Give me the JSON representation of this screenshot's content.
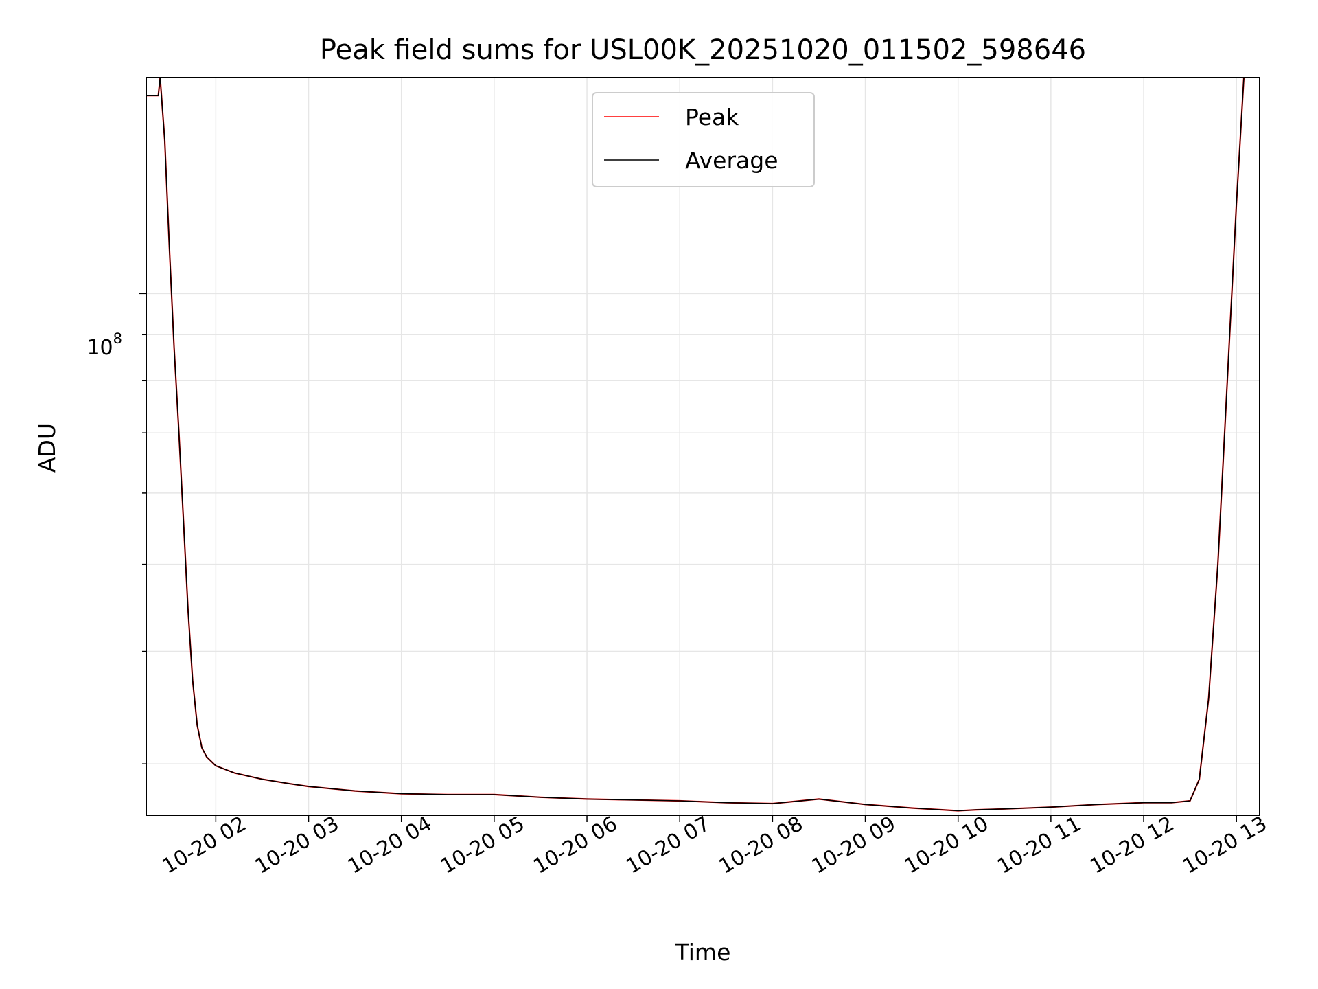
{
  "chart_data": {
    "type": "line",
    "title": "Peak field sums for USL00K_20251020_011502_598646",
    "xlabel": "Time",
    "ylabel": "ADU",
    "yscale": "log",
    "xlim": [
      1.25,
      13.25
    ],
    "ylim_log10": [
      7.42,
      8.24
    ],
    "x_ticks": [
      2,
      3,
      4,
      5,
      6,
      7,
      8,
      9,
      10,
      11,
      12,
      13
    ],
    "x_tick_labels": [
      "10-20 02",
      "10-20 03",
      "10-20 04",
      "10-20 05",
      "10-20 06",
      "10-20 07",
      "10-20 08",
      "10-20 09",
      "10-20 10",
      "10-20 11",
      "10-20 12",
      "10-20 13"
    ],
    "y_major_tick_label": "10",
    "y_major_tick_exponent": "8",
    "y_major_tick_value": 100000000,
    "grid": true,
    "legend_position": "top-center",
    "series": [
      {
        "name": "Peak",
        "color": "#ff0000",
        "x": [
          1.25,
          1.38,
          1.4,
          1.45,
          1.5,
          1.55,
          1.6,
          1.65,
          1.7,
          1.75,
          1.8,
          1.85,
          1.9,
          2.0,
          2.2,
          2.5,
          2.8,
          3.0,
          3.5,
          4.0,
          4.5,
          5.0,
          5.5,
          6.0,
          6.5,
          7.0,
          7.5,
          8.0,
          8.5,
          9.0,
          9.5,
          10.0,
          10.2,
          10.5,
          11.0,
          11.5,
          12.0,
          12.3,
          12.5,
          12.6,
          12.7,
          12.8,
          12.9,
          13.0,
          13.08
        ],
        "log10": [
          8.22,
          8.22,
          8.24,
          8.17,
          8.05,
          7.94,
          7.85,
          7.75,
          7.65,
          7.57,
          7.52,
          7.495,
          7.485,
          7.475,
          7.467,
          7.46,
          7.455,
          7.452,
          7.447,
          7.444,
          7.443,
          7.443,
          7.44,
          7.438,
          7.437,
          7.436,
          7.434,
          7.433,
          7.438,
          7.432,
          7.428,
          7.425,
          7.426,
          7.427,
          7.429,
          7.432,
          7.434,
          7.434,
          7.436,
          7.46,
          7.55,
          7.7,
          7.9,
          8.1,
          8.24
        ]
      },
      {
        "name": "Average",
        "color": "#000000",
        "x": [
          1.25,
          1.38,
          1.4,
          1.45,
          1.5,
          1.55,
          1.6,
          1.65,
          1.7,
          1.75,
          1.8,
          1.85,
          1.9,
          2.0,
          2.2,
          2.5,
          2.8,
          3.0,
          3.5,
          4.0,
          4.5,
          5.0,
          5.5,
          6.0,
          6.5,
          7.0,
          7.5,
          8.0,
          8.5,
          9.0,
          9.5,
          10.0,
          10.2,
          10.5,
          11.0,
          11.5,
          12.0,
          12.3,
          12.5,
          12.6,
          12.7,
          12.8,
          12.9,
          13.0,
          13.08
        ],
        "log10": [
          8.22,
          8.22,
          8.24,
          8.17,
          8.05,
          7.94,
          7.85,
          7.75,
          7.65,
          7.57,
          7.52,
          7.495,
          7.485,
          7.475,
          7.467,
          7.46,
          7.455,
          7.452,
          7.447,
          7.444,
          7.443,
          7.443,
          7.44,
          7.438,
          7.437,
          7.436,
          7.434,
          7.433,
          7.438,
          7.432,
          7.428,
          7.425,
          7.426,
          7.427,
          7.429,
          7.432,
          7.434,
          7.434,
          7.436,
          7.46,
          7.55,
          7.7,
          7.9,
          8.1,
          8.24
        ]
      }
    ]
  }
}
